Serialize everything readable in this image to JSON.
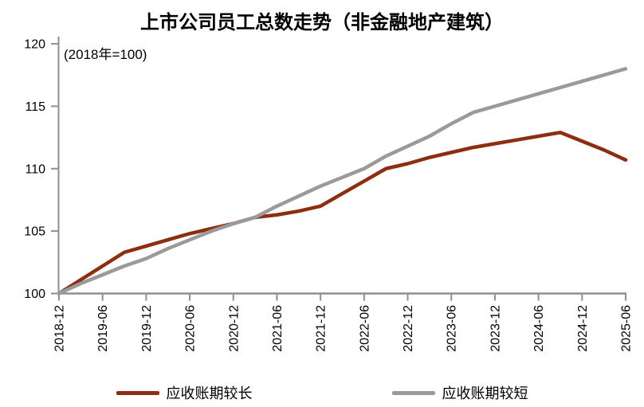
{
  "title": "上市公司员工总数走势（非金融地产建筑）",
  "subtitle": "(2018年=100)",
  "colors": {
    "background": "#ffffff",
    "axis": "#8f8f8f",
    "text": "#000000",
    "series_long": "#8e2e10",
    "series_short": "#9a9a9a"
  },
  "legend": {
    "long_label": "应收账期较长",
    "short_label": "应收账期较短"
  },
  "chart_data": {
    "type": "line",
    "title": "上市公司员工总数走势（非金融地产建筑）",
    "subtitle": "(2018年=100)",
    "xlabel": "",
    "ylabel": "",
    "ylim": [
      100,
      120
    ],
    "yticks": [
      100,
      105,
      110,
      115,
      120
    ],
    "xtick_every": 2,
    "grid": false,
    "legend_position": "bottom",
    "categories": [
      "2018-12",
      "2019-03",
      "2019-06",
      "2019-09",
      "2019-12",
      "2020-03",
      "2020-06",
      "2020-09",
      "2020-12",
      "2021-03",
      "2021-06",
      "2021-09",
      "2021-12",
      "2022-03",
      "2022-06",
      "2022-09",
      "2022-12",
      "2023-03",
      "2023-06",
      "2023-09",
      "2023-12",
      "2024-03",
      "2024-06",
      "2024-09",
      "2024-12",
      "2025-03",
      "2025-06"
    ],
    "xtick_labels": [
      "2018-12",
      "2019-06",
      "2019-12",
      "2020-06",
      "2020-12",
      "2021-06",
      "2021-12",
      "2022-06",
      "2022-12",
      "2023-06",
      "2023-12",
      "2024-06",
      "2024-12",
      "2025-06"
    ],
    "series": [
      {
        "name": "应收账期较长",
        "color": "#8e2e10",
        "values": [
          100.0,
          101.1,
          102.2,
          103.3,
          103.8,
          104.3,
          104.8,
          105.2,
          105.6,
          106.1,
          106.3,
          106.6,
          107.0,
          108.0,
          109.0,
          110.0,
          110.4,
          110.9,
          111.3,
          111.7,
          112.0,
          112.3,
          112.6,
          112.9,
          112.2,
          111.5,
          110.7
        ]
      },
      {
        "name": "应收账期较短",
        "color": "#9a9a9a",
        "values": [
          100.0,
          100.8,
          101.5,
          102.2,
          102.8,
          103.6,
          104.3,
          105.0,
          105.6,
          106.1,
          107.0,
          107.8,
          108.6,
          109.3,
          110.0,
          111.0,
          111.8,
          112.6,
          113.6,
          114.5,
          115.0,
          115.5,
          116.0,
          116.5,
          117.0,
          117.5,
          118.0
        ]
      }
    ]
  }
}
